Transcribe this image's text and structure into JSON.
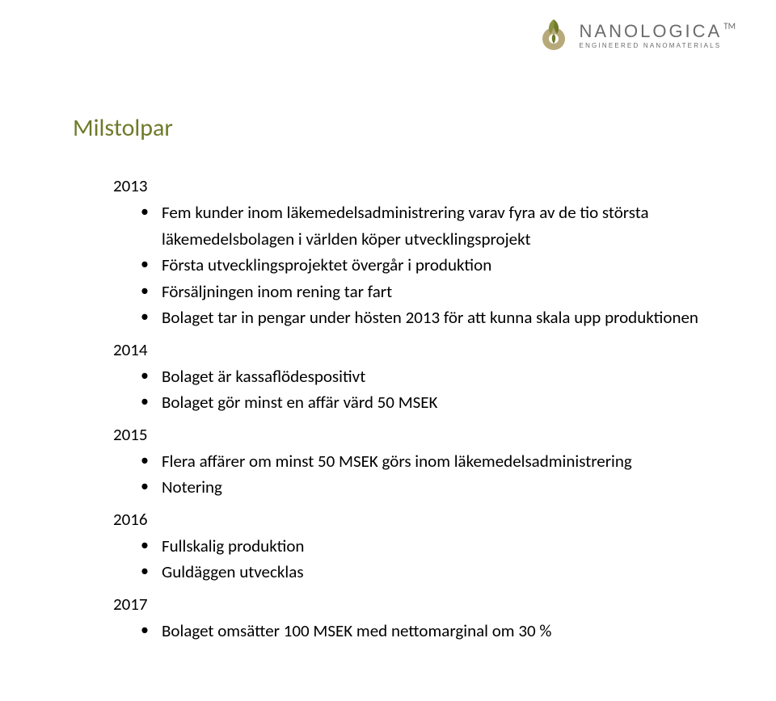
{
  "logo": {
    "name": "NANOLOGICA",
    "tagline": "ENGINEERED NANOMATERIALS",
    "tm": "TM",
    "icon_name": "leaf-sphere-icon",
    "colors": {
      "olive": "#6f7a2a",
      "khaki": "#b7a97a",
      "gray": "#6b6b6b"
    }
  },
  "heading": {
    "text": "Milstolpar",
    "color": "#6f7a2a",
    "fontsize": 30
  },
  "body": {
    "fontsize": 21,
    "text_color": "#000000",
    "background": "#ffffff"
  },
  "years": [
    {
      "year": "2013",
      "items": [
        "Fem kunder inom läkemedelsadministrering varav fyra av de tio största läkemedelsbolagen i världen köper utvecklingsprojekt",
        "Första utvecklingsprojektet övergår i produktion",
        "Försäljningen inom rening tar fart",
        "Bolaget tar in pengar under hösten 2013 för att kunna skala upp produktionen"
      ]
    },
    {
      "year": "2014",
      "items": [
        "Bolaget är kassaflödespositivt",
        "Bolaget gör minst en affär värd 50 MSEK"
      ]
    },
    {
      "year": "2015",
      "items": [
        "Flera affärer om minst 50 MSEK görs inom läkemedelsadministrering",
        "Notering"
      ]
    },
    {
      "year": "2016",
      "items": [
        "Fullskalig produktion",
        "Guldäggen utvecklas"
      ]
    },
    {
      "year": "2017",
      "items": [
        "Bolaget omsätter 100 MSEK med nettomarginal om 30 %"
      ]
    }
  ]
}
